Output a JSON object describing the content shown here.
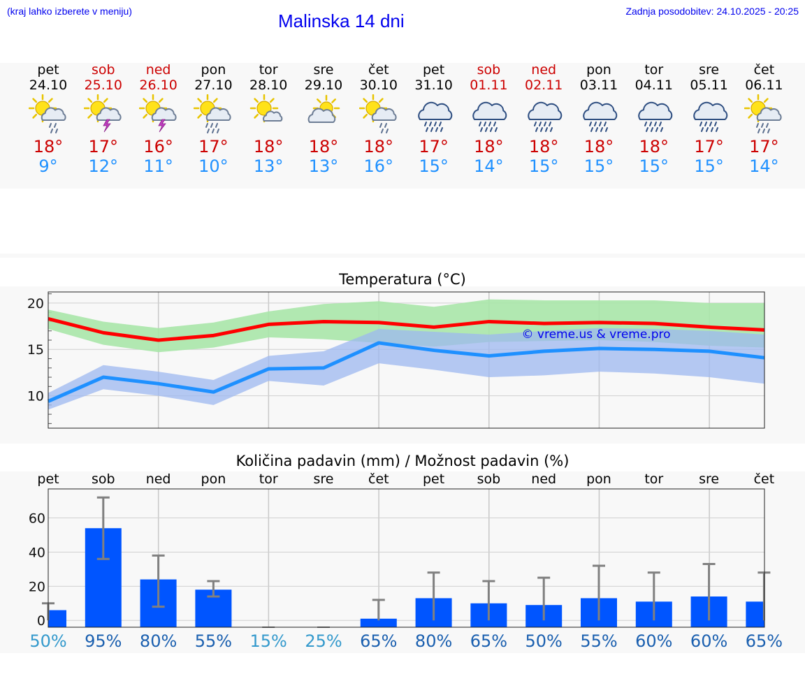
{
  "header": {
    "hint": "(kraj lahko izberete v meniju)",
    "title": "Malinska 14 dni",
    "updated": "Zadnja posodobitev: 24.10.2025 - 20:25"
  },
  "colors": {
    "red": "#cc0000",
    "blue": "#1e90ff",
    "bar": "#0055ff",
    "green_band": "#a8e6a8",
    "blue_band": "#9db8f0"
  },
  "days": [
    {
      "name": "pet",
      "date": "24.10",
      "weekend": false,
      "icon": "sun-cloud-light-rain-icon",
      "tmax": "18°",
      "tmin": "9°"
    },
    {
      "name": "sob",
      "date": "25.10",
      "weekend": true,
      "icon": "sun-cloud-thunder-icon",
      "tmax": "17°",
      "tmin": "12°"
    },
    {
      "name": "ned",
      "date": "26.10",
      "weekend": true,
      "icon": "sun-cloud-thunder-icon",
      "tmax": "16°",
      "tmin": "11°"
    },
    {
      "name": "pon",
      "date": "27.10",
      "weekend": false,
      "icon": "sun-cloud-rain-icon",
      "tmax": "17°",
      "tmin": "10°"
    },
    {
      "name": "tor",
      "date": "28.10",
      "weekend": false,
      "icon": "sun-small-cloud-icon",
      "tmax": "18°",
      "tmin": "13°"
    },
    {
      "name": "sre",
      "date": "29.10",
      "weekend": false,
      "icon": "sun-cloud-icon",
      "tmax": "18°",
      "tmin": "13°"
    },
    {
      "name": "čet",
      "date": "30.10",
      "weekend": false,
      "icon": "sun-cloud-light-rain-icon",
      "tmax": "18°",
      "tmin": "16°"
    },
    {
      "name": "pet",
      "date": "31.10",
      "weekend": false,
      "icon": "cloud-rain-icon",
      "tmax": "17°",
      "tmin": "15°"
    },
    {
      "name": "sob",
      "date": "01.11",
      "weekend": true,
      "icon": "cloud-rain-icon",
      "tmax": "18°",
      "tmin": "14°"
    },
    {
      "name": "ned",
      "date": "02.11",
      "weekend": true,
      "icon": "cloud-rain-icon",
      "tmax": "18°",
      "tmin": "15°"
    },
    {
      "name": "pon",
      "date": "03.11",
      "weekend": false,
      "icon": "cloud-rain-icon",
      "tmax": "18°",
      "tmin": "15°"
    },
    {
      "name": "tor",
      "date": "04.11",
      "weekend": false,
      "icon": "cloud-rain-icon",
      "tmax": "18°",
      "tmin": "15°"
    },
    {
      "name": "sre",
      "date": "05.11",
      "weekend": false,
      "icon": "cloud-rain-icon",
      "tmax": "17°",
      "tmin": "15°"
    },
    {
      "name": "čet",
      "date": "06.11",
      "weekend": false,
      "icon": "sun-cloud-rain-icon",
      "tmax": "17°",
      "tmin": "14°"
    }
  ],
  "chart_data": [
    {
      "type": "line",
      "title": "Temperatura (°C)",
      "xlabel": "",
      "ylabel": "",
      "ylim": [
        6.5,
        21.2
      ],
      "yticks": [
        "10",
        "15",
        "20"
      ],
      "yticks_values": [
        10,
        15,
        20
      ],
      "x": [
        0,
        1,
        2,
        3,
        4,
        5,
        6,
        7,
        8,
        9,
        10,
        11,
        12,
        13
      ],
      "series": [
        {
          "name": "max",
          "color": "#ff0000",
          "values": [
            18.3,
            16.8,
            16.0,
            16.5,
            17.7,
            18.0,
            17.9,
            17.4,
            18.0,
            17.8,
            17.9,
            17.8,
            17.4,
            17.1
          ]
        },
        {
          "name": "max_range_low",
          "values": [
            17.2,
            15.5,
            14.7,
            15.2,
            16.3,
            16.1,
            15.7,
            15.3,
            15.8,
            15.9,
            16.0,
            15.8,
            15.4,
            15.2
          ]
        },
        {
          "name": "max_range_high",
          "values": [
            19.3,
            18.0,
            17.3,
            17.9,
            19.1,
            19.9,
            20.2,
            19.6,
            20.4,
            20.3,
            20.3,
            20.3,
            20.0,
            20.0
          ]
        },
        {
          "name": "min",
          "color": "#1e90ff",
          "values": [
            9.4,
            12.0,
            11.3,
            10.4,
            12.9,
            13.0,
            15.7,
            14.9,
            14.3,
            14.8,
            15.1,
            15.0,
            14.8,
            14.1
          ]
        },
        {
          "name": "min_range_low",
          "values": [
            8.5,
            10.7,
            10.0,
            9.0,
            11.6,
            11.1,
            13.5,
            12.8,
            12.0,
            12.2,
            12.6,
            12.4,
            12.0,
            11.3
          ]
        },
        {
          "name": "min_range_high",
          "values": [
            10.3,
            13.3,
            12.6,
            11.7,
            14.3,
            14.8,
            17.2,
            16.9,
            16.6,
            17.0,
            17.3,
            17.2,
            17.0,
            16.6
          ]
        }
      ],
      "annotation": "© vreme.us & vreme.pro",
      "grid": true
    },
    {
      "type": "bar",
      "title": "Količina padavin (mm) / Možnost padavin (%)",
      "categories": [
        "pet",
        "sob",
        "ned",
        "pon",
        "tor",
        "sre",
        "čet",
        "pet",
        "sob",
        "ned",
        "pon",
        "tor",
        "sre",
        "čet"
      ],
      "series": [
        {
          "name": "amount_mm",
          "values": [
            6,
            54,
            24,
            18,
            0,
            0,
            1,
            13,
            10,
            9,
            13,
            11,
            14,
            11
          ]
        },
        {
          "name": "range_low",
          "values": [
            0,
            36,
            8,
            14,
            0,
            0,
            0,
            0,
            0,
            0,
            0,
            0,
            0,
            0
          ]
        },
        {
          "name": "range_high",
          "values": [
            10,
            72,
            38,
            23,
            0,
            0,
            12,
            28,
            23,
            25,
            32,
            28,
            33,
            28
          ]
        }
      ],
      "probabilities": [
        "50%",
        "95%",
        "80%",
        "55%",
        "15%",
        "25%",
        "65%",
        "80%",
        "65%",
        "50%",
        "55%",
        "60%",
        "60%",
        "65%"
      ],
      "probability_colors": [
        "#3399cc",
        "#1a5faf",
        "#1a5faf",
        "#1a5faf",
        "#3399cc",
        "#3399cc",
        "#1a5faf",
        "#1a5faf",
        "#1a5faf",
        "#1a5faf",
        "#1a5faf",
        "#1a5faf",
        "#1a5faf",
        "#1a5faf"
      ],
      "yticks": [
        "0",
        "20",
        "40",
        "60"
      ],
      "yticks_values": [
        0,
        20,
        40,
        60
      ],
      "ylim": [
        -4,
        77
      ],
      "grid": true
    }
  ]
}
